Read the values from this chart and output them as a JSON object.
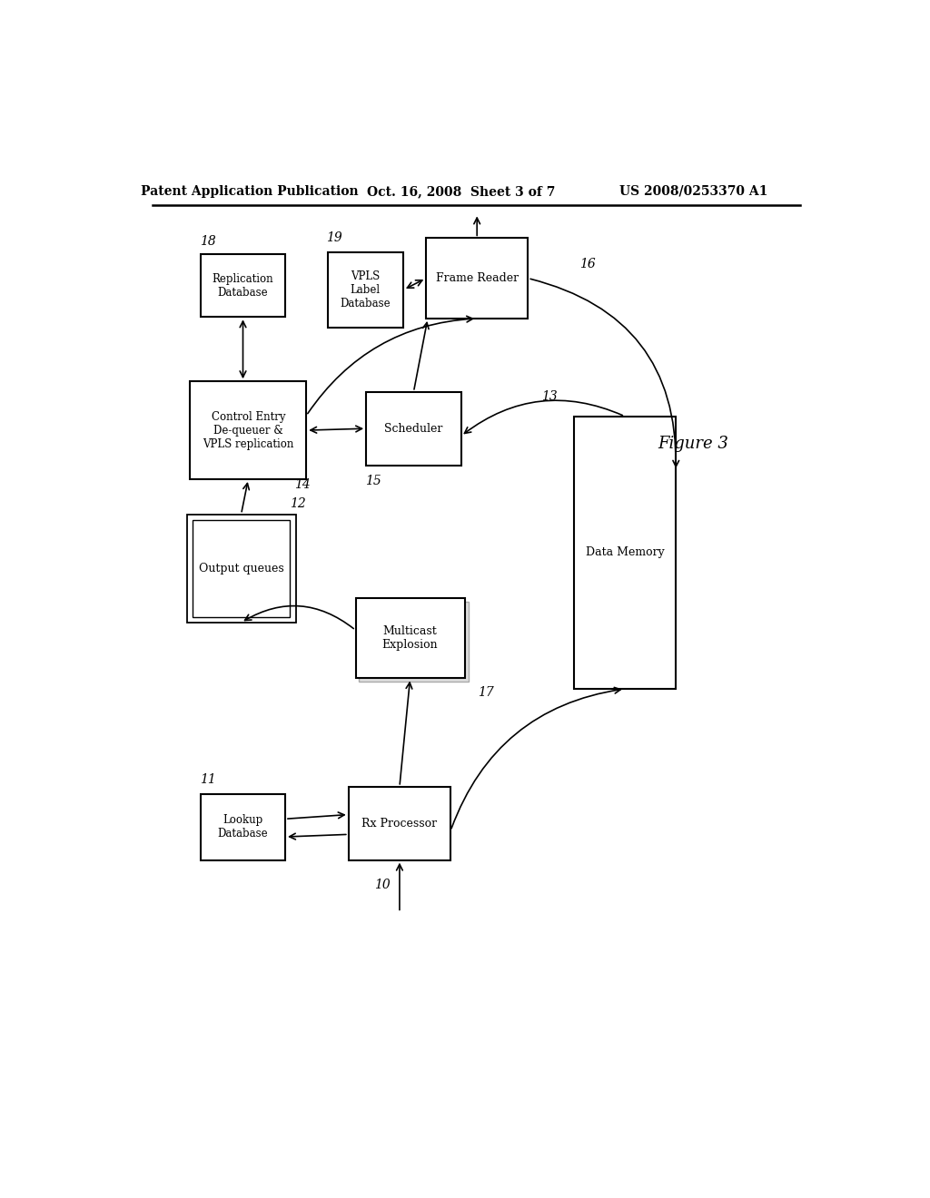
{
  "header_left": "Patent Application Publication",
  "header_center": "Oct. 16, 2008  Sheet 3 of 7",
  "header_right": "US 2008/0253370 A1",
  "figure_label": "Figure 3",
  "background_color": "#ffffff",
  "fig_width": 10.24,
  "fig_height": 13.2,
  "dpi": 100
}
